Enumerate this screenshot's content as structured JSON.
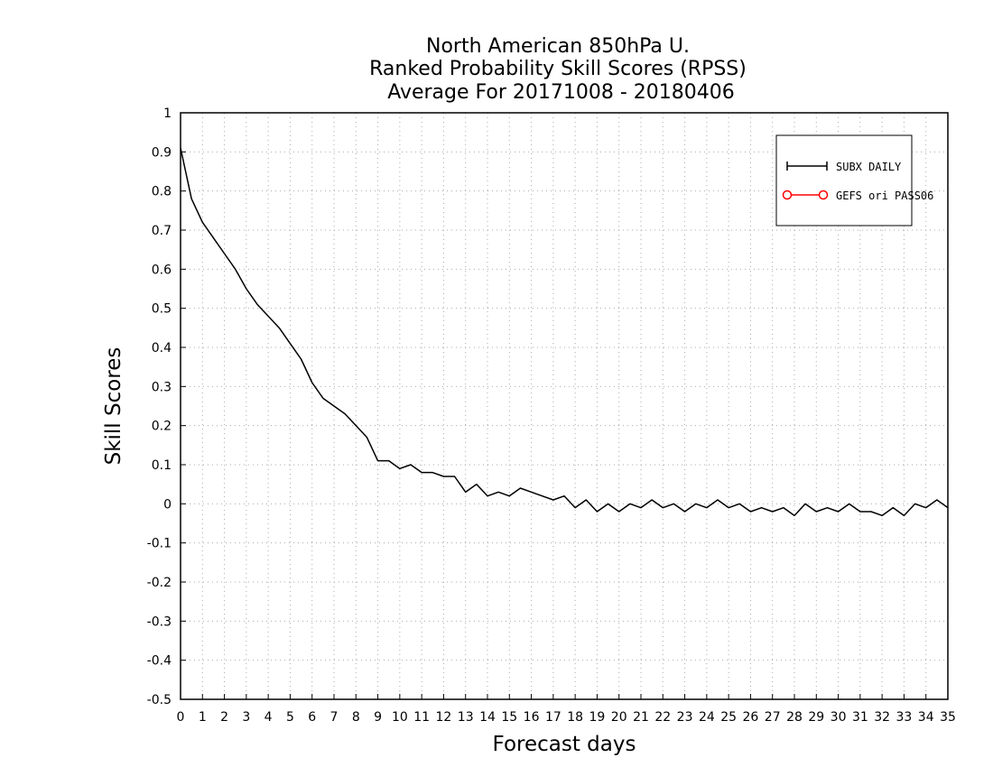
{
  "chart_data": {
    "type": "line",
    "title_lines": [
      "North American 850hPa U.",
      "Ranked Probability Skill Scores (RPSS)",
      " Average For 20171008 - 20180406"
    ],
    "xlabel": "Forecast days",
    "ylabel": "Skill Scores",
    "xlim": [
      0,
      35
    ],
    "ylim": [
      -0.5,
      1
    ],
    "x_ticks": [
      "0",
      "1",
      "2",
      "3",
      "4",
      "5",
      "6",
      "7",
      "8",
      "9",
      "10",
      "11",
      "12",
      "13",
      "14",
      "15",
      "16",
      "17",
      "18",
      "19",
      "20",
      "21",
      "22",
      "23",
      "24",
      "25",
      "26",
      "27",
      "28",
      "29",
      "30",
      "31",
      "32",
      "33",
      "34",
      "35"
    ],
    "y_ticks": [
      "1",
      "0.9",
      "0.8",
      "0.7",
      "0.6",
      "0.5",
      "0.4",
      "0.3",
      "0.2",
      "0.1",
      "0",
      "-0.1",
      "-0.2",
      "-0.3",
      "-0.4",
      "-0.5"
    ],
    "grid": true,
    "legend_position": "top-right",
    "colors": {
      "series_1": "#000000",
      "series_2": "#ff0000",
      "grid": "#aaaaaa"
    },
    "series": [
      {
        "name": "SUBX DAILY",
        "marker": "plus",
        "x": [
          0,
          0.5,
          1,
          1.5,
          2,
          2.5,
          3,
          3.5,
          4,
          4.5,
          5,
          5.5,
          6,
          6.5,
          7,
          7.5,
          8,
          8.5,
          9,
          9.5,
          10,
          10.5,
          11,
          11.5,
          12,
          12.5,
          13,
          13.5,
          14,
          14.5,
          15,
          15.5,
          16,
          16.5,
          17,
          17.5,
          18,
          18.5,
          19,
          19.5,
          20,
          20.5,
          21,
          21.5,
          22,
          22.5,
          23,
          23.5,
          24,
          24.5,
          25,
          25.5,
          26,
          26.5,
          27,
          27.5,
          28,
          28.5,
          29,
          29.5,
          30,
          30.5,
          31,
          31.5,
          32,
          32.5,
          33,
          33.5,
          34,
          34.5,
          35
        ],
        "values": [
          0.91,
          0.78,
          0.72,
          0.68,
          0.64,
          0.6,
          0.55,
          0.51,
          0.48,
          0.45,
          0.41,
          0.37,
          0.31,
          0.27,
          0.25,
          0.23,
          0.2,
          0.17,
          0.11,
          0.11,
          0.09,
          0.1,
          0.08,
          0.08,
          0.07,
          0.07,
          0.03,
          0.05,
          0.02,
          0.03,
          0.02,
          0.04,
          0.03,
          0.02,
          0.01,
          0.02,
          -0.01,
          0.01,
          -0.02,
          0.0,
          -0.02,
          0.0,
          -0.01,
          0.01,
          -0.01,
          0.0,
          -0.02,
          0.0,
          -0.01,
          0.01,
          -0.01,
          0.0,
          -0.02,
          -0.01,
          -0.02,
          -0.01,
          -0.03,
          0.0,
          -0.02,
          -0.01,
          -0.02,
          0.0,
          -0.02,
          -0.02,
          -0.03,
          -0.01,
          -0.03,
          0.0,
          -0.01,
          0.01,
          -0.01
        ]
      },
      {
        "name": "GEFS ori PASS06",
        "marker": "circle",
        "x": [],
        "values": []
      }
    ]
  }
}
